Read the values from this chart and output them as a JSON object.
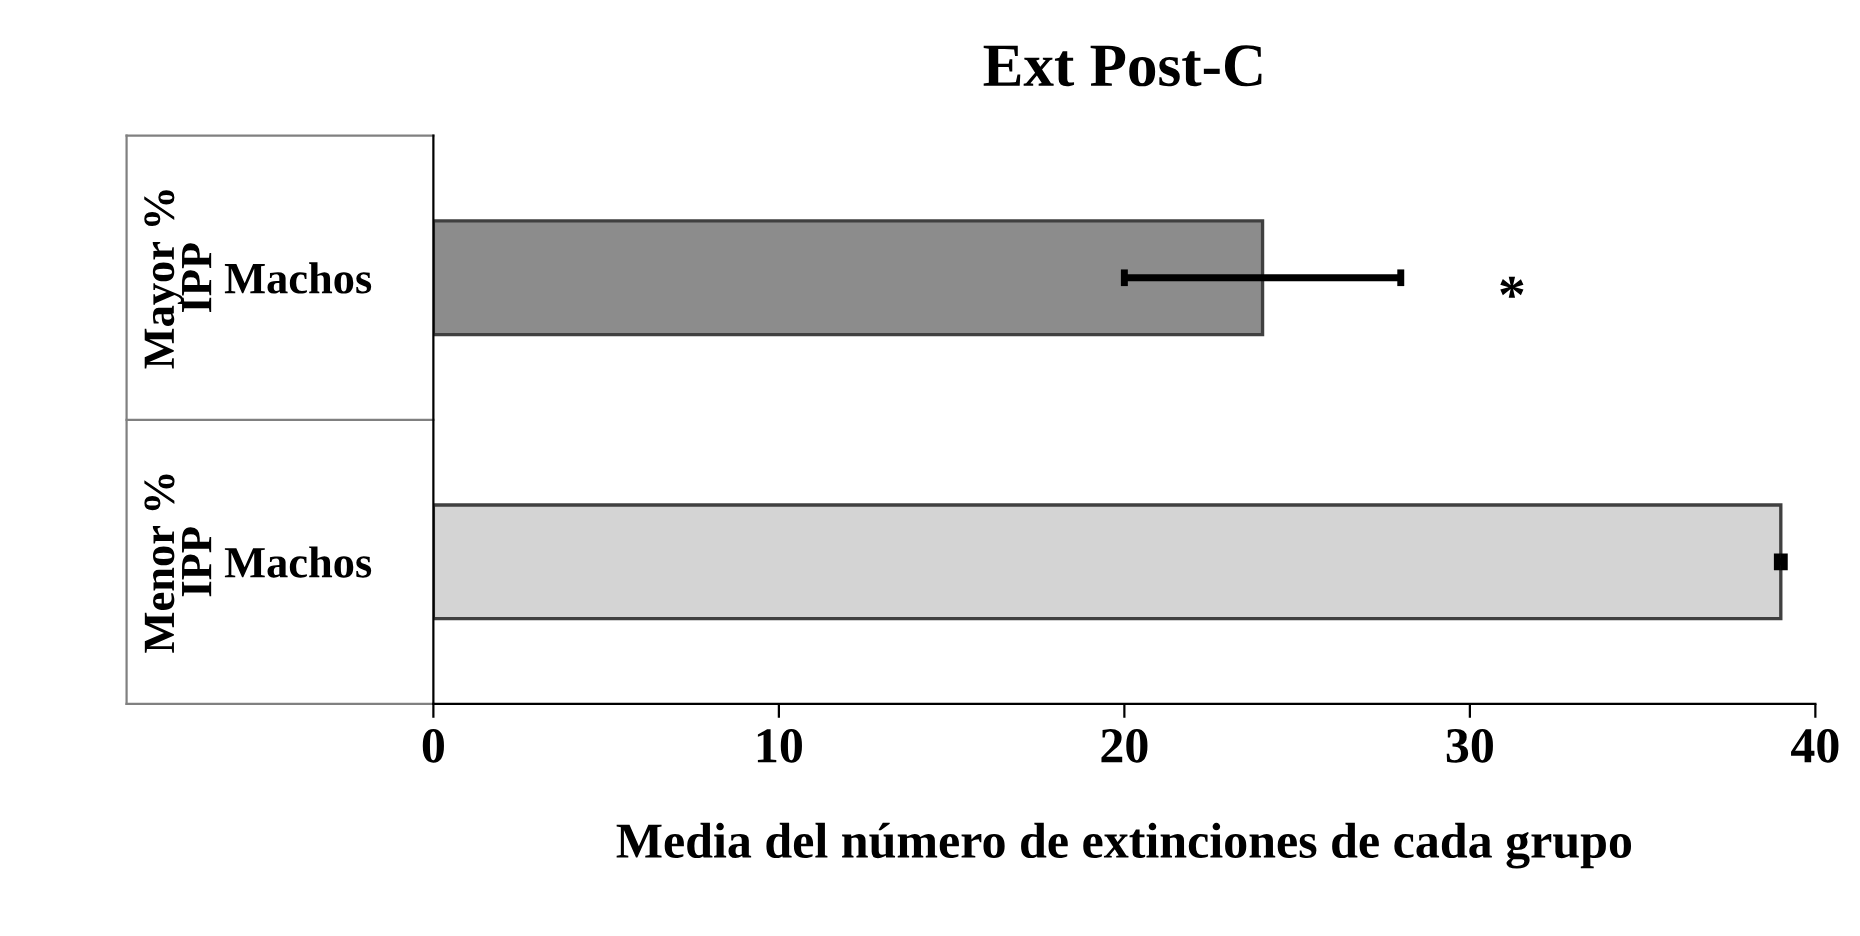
{
  "chart_data": {
    "type": "bar",
    "orientation": "horizontal",
    "title": "Ext Post-C",
    "xlabel": "Media del número de extinciones de cada grupo",
    "categories": [
      "Machos",
      "Machos"
    ],
    "values": [
      24,
      39
    ],
    "colors": [
      "#8c8c8c",
      "#d4d4d4"
    ],
    "errors": [
      4,
      0.1
    ],
    "xlim": [
      0,
      40
    ],
    "xticks": [
      0,
      10,
      20,
      30,
      40
    ],
    "grid": false,
    "annotations": [
      "Mayor % IPP",
      "Menor % IPP",
      "*"
    ]
  }
}
